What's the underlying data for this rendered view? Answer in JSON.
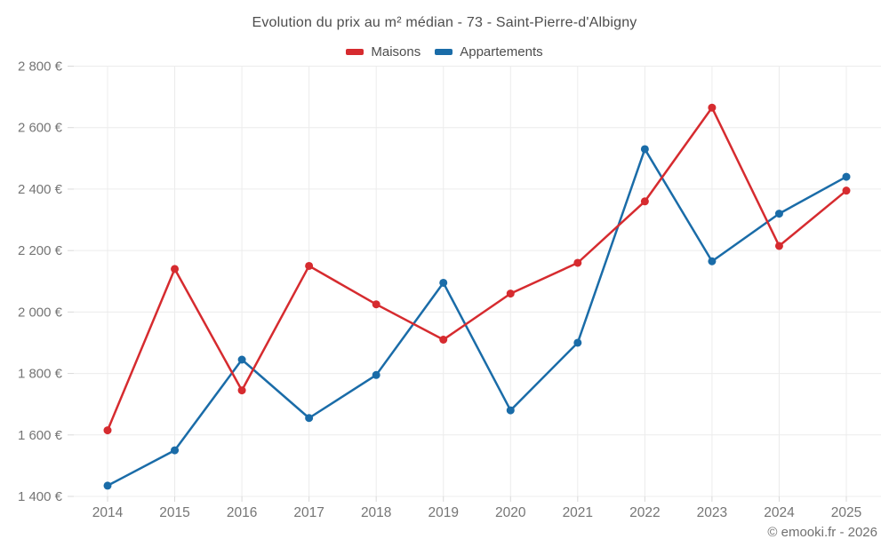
{
  "chart_data": {
    "type": "line",
    "title": "Evolution du prix au m² médian - 73 - Saint-Pierre-d'Albigny",
    "categories": [
      "2014",
      "2015",
      "2016",
      "2017",
      "2018",
      "2019",
      "2020",
      "2021",
      "2022",
      "2023",
      "2024",
      "2025"
    ],
    "series": [
      {
        "name": "Maisons",
        "color": "#d62b2f",
        "values": [
          1615,
          2140,
          1745,
          2150,
          2025,
          1910,
          2060,
          2160,
          2360,
          2665,
          2215,
          2395
        ]
      },
      {
        "name": "Appartements",
        "color": "#1a6ca8",
        "values": [
          1435,
          1550,
          1845,
          1655,
          1795,
          2095,
          1680,
          1900,
          2530,
          2165,
          2320,
          2440
        ]
      }
    ],
    "ylim": [
      1400,
      2800
    ],
    "ytick_step": 200,
    "y_unit": "€",
    "y_tick_labels": [
      "1 400 €",
      "1 600 €",
      "1 800 €",
      "2 000 €",
      "2 200 €",
      "2 400 €",
      "2 600 €",
      "2 800 €"
    ],
    "grid": true,
    "legend_position": "top",
    "grid_color": "#ececec",
    "tick_color": "#d9d9d9",
    "axis_label_color": "#757575"
  },
  "footer": {
    "credit": "© emooki.fr - 2026"
  }
}
